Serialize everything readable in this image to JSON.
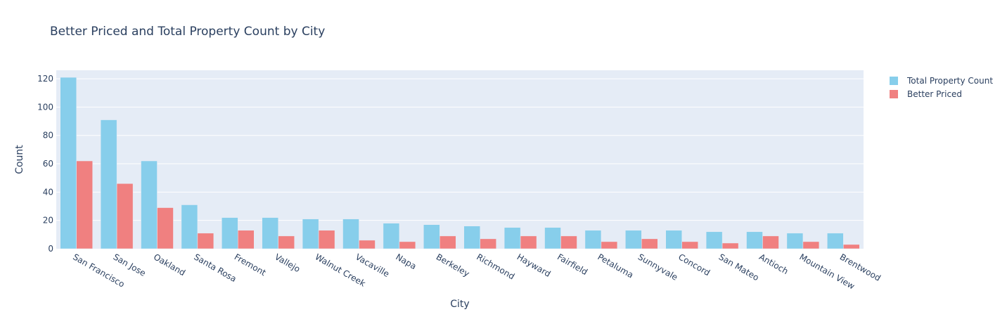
{
  "chart_data": {
    "type": "bar",
    "title": "Better Priced and Total Property Count by City",
    "xlabel": "City",
    "ylabel": "Count",
    "ylim": [
      0,
      126
    ],
    "yticks": [
      0,
      20,
      40,
      60,
      80,
      100,
      120
    ],
    "grid": true,
    "legend_position": "top-right",
    "categories": [
      "San Francisco",
      "San Jose",
      "Oakland",
      "Santa Rosa",
      "Fremont",
      "Vallejo",
      "Walnut Creek",
      "Vacaville",
      "Napa",
      "Berkeley",
      "Richmond",
      "Hayward",
      "Fairfield",
      "Petaluma",
      "Sunnyvale",
      "Concord",
      "San Mateo",
      "Antioch",
      "Mountain View",
      "Brentwood"
    ],
    "series": [
      {
        "name": "Total Property Count",
        "color": "#87CEEB",
        "values": [
          121,
          91,
          62,
          31,
          22,
          22,
          21,
          21,
          18,
          17,
          16,
          15,
          15,
          13,
          13,
          13,
          12,
          12,
          11,
          11
        ]
      },
      {
        "name": "Better Priced",
        "color": "#F08080",
        "values": [
          62,
          46,
          29,
          11,
          13,
          9,
          13,
          6,
          5,
          9,
          7,
          9,
          9,
          5,
          7,
          5,
          4,
          9,
          5,
          3
        ]
      }
    ]
  },
  "colors": {
    "plot_background": "#E5ECF6",
    "gridline": "#ffffff",
    "text": "#2a3f5f"
  }
}
